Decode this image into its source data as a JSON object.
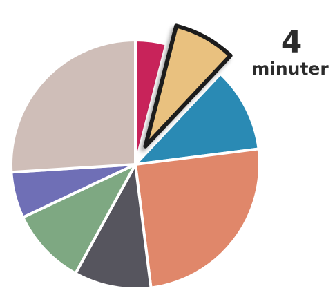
{
  "chart_data": {
    "type": "pie",
    "start_angle_deg": 0,
    "direction": "clockwise",
    "slices": [
      {
        "value": 4,
        "color": "#c8235a"
      },
      {
        "value": 8,
        "color": "#e9c17f",
        "exploded": true,
        "outlined": true
      },
      {
        "value": 11,
        "color": "#2a8ab4"
      },
      {
        "value": 25,
        "color": "#e0876a"
      },
      {
        "value": 10,
        "color": "#56555e"
      },
      {
        "value": 10,
        "color": "#7ea882"
      },
      {
        "value": 6,
        "color": "#6f6fb6"
      },
      {
        "value": 26,
        "color": "#cfbeb8"
      }
    ],
    "callout": {
      "value": "4",
      "unit": "minuter"
    }
  }
}
